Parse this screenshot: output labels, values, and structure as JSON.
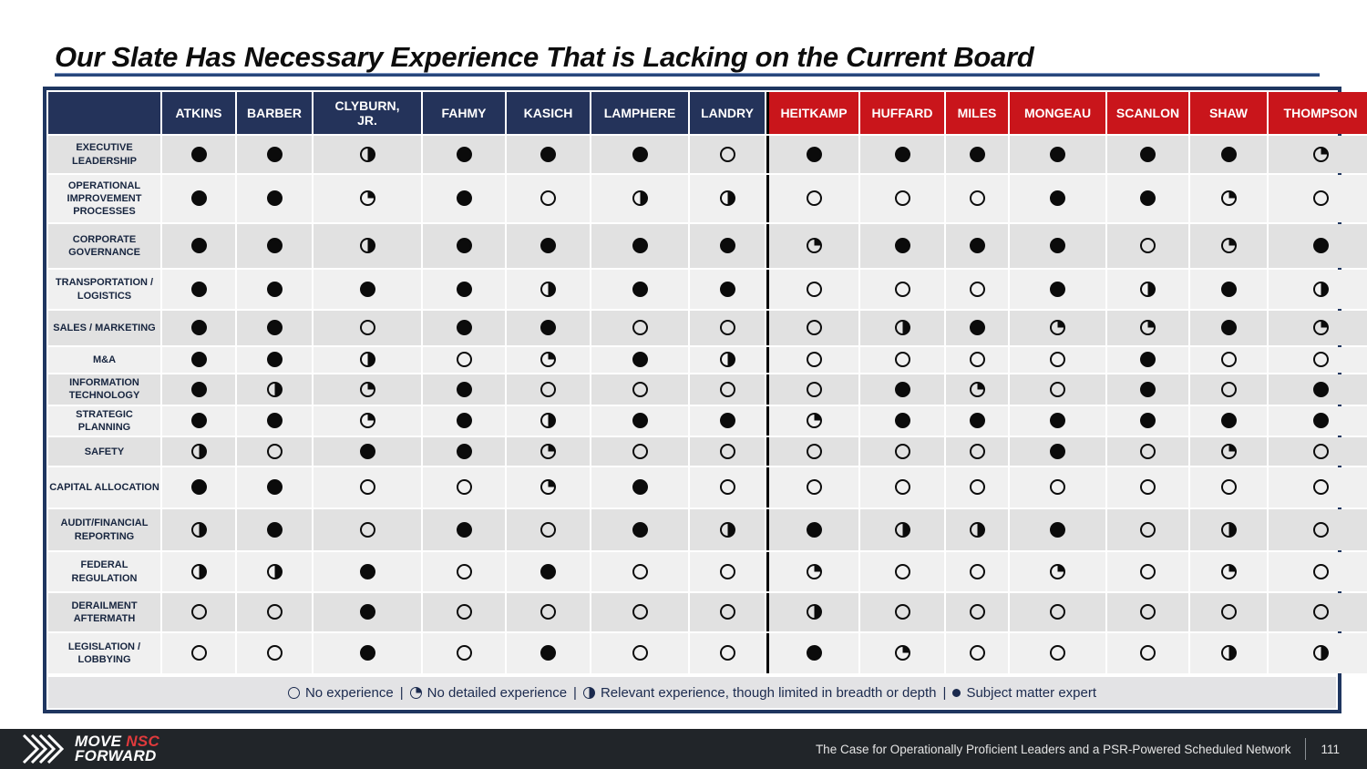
{
  "slide": {
    "title": "Our Slate Has Necessary Experience That is Lacking on the Current Board"
  },
  "palette": {
    "navy_header": "#24335a",
    "red_header": "#c9151b",
    "table_border_navy": "#1f3660",
    "row_stripe_dark": "#e1e1e1",
    "row_stripe_light": "#f0f0f0",
    "glyph_black": "#0b0b0b",
    "legend_navy": "#1b2a4e",
    "footer_bg": "#212529",
    "logo_red": "#e03a3c"
  },
  "chart_data": {
    "type": "table",
    "title": "Our Slate Has Necessary Experience That is Lacking on the Current Board",
    "value_scale": {
      "empty": "No experience",
      "quarter": "No detailed experience",
      "half": "Relevant experience, though limited in breadth or depth",
      "full": "Subject matter expert"
    },
    "column_groups": {
      "navy": "our slate",
      "red": "current board"
    },
    "columns": [
      {
        "label": "ATKINS",
        "group": "navy"
      },
      {
        "label": "BARBER",
        "group": "navy"
      },
      {
        "label": "CLYBURN,\nJR.",
        "group": "navy"
      },
      {
        "label": "FAHMY",
        "group": "navy"
      },
      {
        "label": "KASICH",
        "group": "navy"
      },
      {
        "label": "LAMPHERE",
        "group": "navy"
      },
      {
        "label": "LANDRY",
        "group": "navy"
      },
      {
        "label": "HEITKAMP",
        "group": "red"
      },
      {
        "label": "HUFFARD",
        "group": "red"
      },
      {
        "label": "MILES",
        "group": "red"
      },
      {
        "label": "MONGEAU",
        "group": "red"
      },
      {
        "label": "SCANLON",
        "group": "red"
      },
      {
        "label": "SHAW",
        "group": "red"
      },
      {
        "label": "THOMPSON",
        "group": "red"
      }
    ],
    "rows": [
      {
        "label": "EXECUTIVE LEADERSHIP",
        "values": [
          "full",
          "full",
          "half",
          "full",
          "full",
          "full",
          "empty",
          "full",
          "full",
          "full",
          "full",
          "full",
          "full",
          "quarter"
        ]
      },
      {
        "label": "OPERATIONAL IMPROVEMENT PROCESSES",
        "values": [
          "full",
          "full",
          "quarter",
          "full",
          "empty",
          "half",
          "half",
          "empty",
          "empty",
          "empty",
          "full",
          "full",
          "quarter",
          "empty"
        ]
      },
      {
        "label": "CORPORATE GOVERNANCE",
        "values": [
          "full",
          "full",
          "half",
          "full",
          "full",
          "full",
          "full",
          "quarter",
          "full",
          "full",
          "full",
          "empty",
          "quarter",
          "full"
        ]
      },
      {
        "label": "TRANSPORTATION / LOGISTICS",
        "values": [
          "full",
          "full",
          "full",
          "full",
          "half",
          "full",
          "full",
          "empty",
          "empty",
          "empty",
          "full",
          "half",
          "full",
          "half"
        ]
      },
      {
        "label": "SALES / MARKETING",
        "values": [
          "full",
          "full",
          "empty",
          "full",
          "full",
          "empty",
          "empty",
          "empty",
          "half",
          "full",
          "quarter",
          "quarter",
          "full",
          "quarter"
        ]
      },
      {
        "label": "M&A",
        "values": [
          "full",
          "full",
          "half",
          "empty",
          "quarter",
          "full",
          "half",
          "empty",
          "empty",
          "empty",
          "empty",
          "full",
          "empty",
          "empty"
        ]
      },
      {
        "label": "INFORMATION TECHNOLOGY",
        "values": [
          "full",
          "half",
          "quarter",
          "full",
          "empty",
          "empty",
          "empty",
          "empty",
          "full",
          "quarter",
          "empty",
          "full",
          "empty",
          "full"
        ]
      },
      {
        "label": "STRATEGIC PLANNING",
        "values": [
          "full",
          "full",
          "quarter",
          "full",
          "half",
          "full",
          "full",
          "quarter",
          "full",
          "full",
          "full",
          "full",
          "full",
          "full"
        ]
      },
      {
        "label": "SAFETY",
        "values": [
          "half",
          "empty",
          "full",
          "full",
          "quarter",
          "empty",
          "empty",
          "empty",
          "empty",
          "empty",
          "full",
          "empty",
          "quarter",
          "empty"
        ]
      },
      {
        "label": "CAPITAL ALLOCATION",
        "values": [
          "full",
          "full",
          "empty",
          "empty",
          "quarter",
          "full",
          "empty",
          "empty",
          "empty",
          "empty",
          "empty",
          "empty",
          "empty",
          "empty"
        ]
      },
      {
        "label": "AUDIT/FINANCIAL REPORTING",
        "values": [
          "half",
          "full",
          "empty",
          "full",
          "empty",
          "full",
          "half",
          "full",
          "half",
          "half",
          "full",
          "empty",
          "half",
          "empty"
        ]
      },
      {
        "label": "FEDERAL REGULATION",
        "values": [
          "half",
          "half",
          "full",
          "empty",
          "full",
          "empty",
          "empty",
          "quarter",
          "empty",
          "empty",
          "quarter",
          "empty",
          "quarter",
          "empty"
        ]
      },
      {
        "label": "DERAILMENT AFTERMATH",
        "values": [
          "empty",
          "empty",
          "full",
          "empty",
          "empty",
          "empty",
          "empty",
          "half",
          "empty",
          "empty",
          "empty",
          "empty",
          "empty",
          "empty"
        ]
      },
      {
        "label": "LEGISLATION / LOBBYING",
        "values": [
          "empty",
          "empty",
          "full",
          "empty",
          "full",
          "empty",
          "empty",
          "full",
          "quarter",
          "empty",
          "empty",
          "empty",
          "half",
          "half"
        ]
      }
    ]
  },
  "legend": {
    "separator": "|",
    "items": [
      {
        "glyph": "empty",
        "label": "No experience"
      },
      {
        "glyph": "quarter",
        "label": "No detailed experience"
      },
      {
        "glyph": "half",
        "label": "Relevant experience, though limited in breadth or depth"
      },
      {
        "glyph": "full",
        "label": "Subject matter expert"
      }
    ]
  },
  "footer": {
    "logo": {
      "move": "MOVE",
      "nsc": "NSC",
      "forward": "FORWARD"
    },
    "caption": "The Case for Operationally Proficient Leaders and a PSR-Powered Scheduled Network",
    "page": "111"
  }
}
